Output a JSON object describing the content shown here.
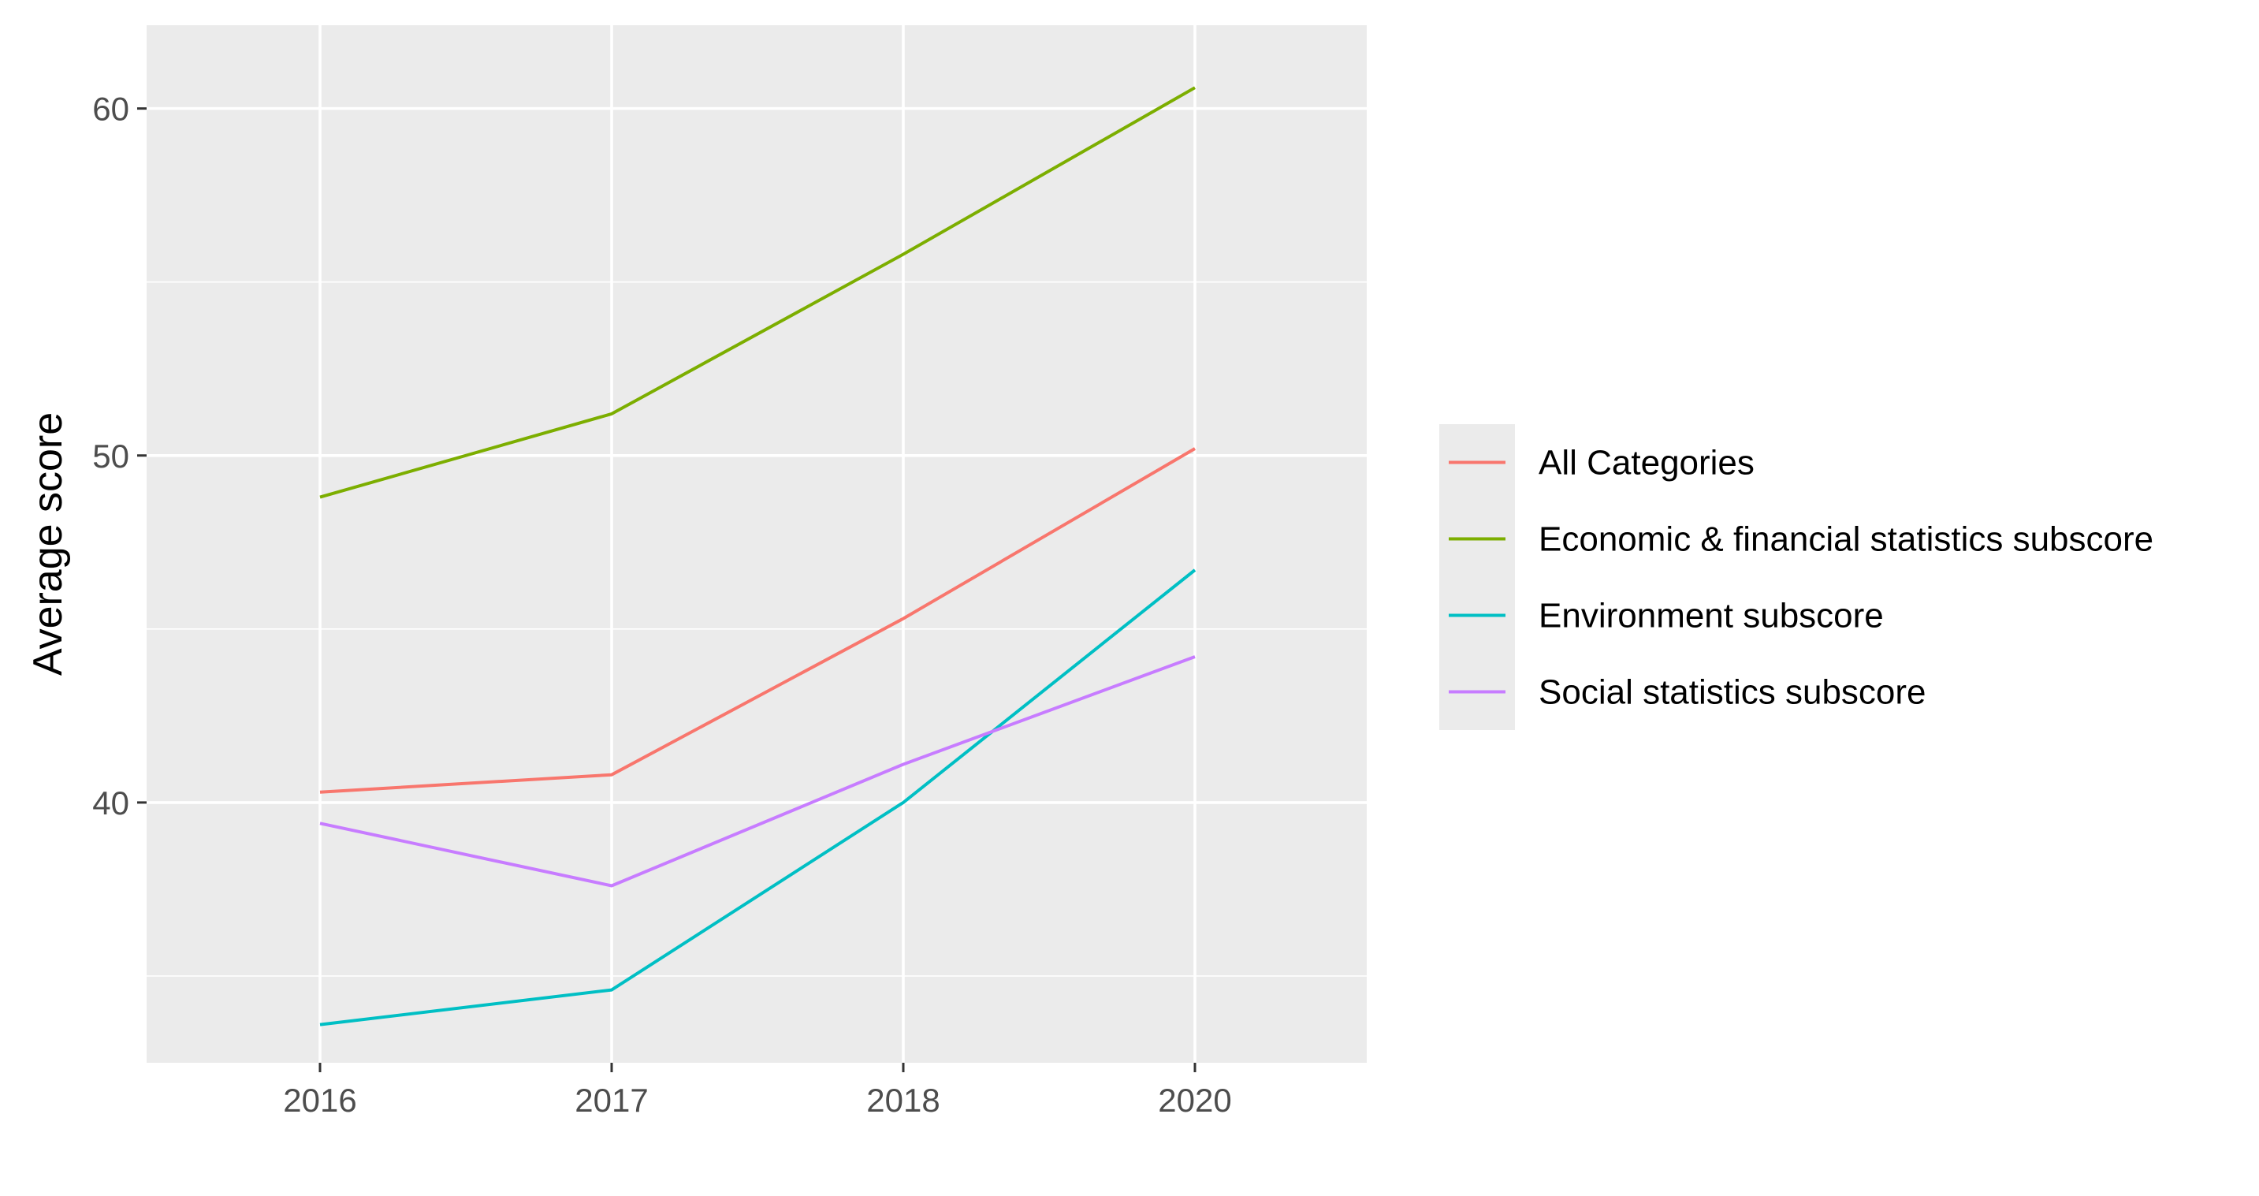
{
  "chart_data": {
    "type": "line",
    "title": "",
    "xlabel": "",
    "ylabel": "Average score",
    "x": [
      "2016",
      "2017",
      "2018",
      "2020"
    ],
    "ylim": [
      32.5,
      62.4
    ],
    "yticks": [
      40,
      50,
      60
    ],
    "grid": true,
    "legend_position": "right",
    "series": [
      {
        "name": "All Categories",
        "color": "#F8766D",
        "values": [
          40.3,
          40.8,
          45.3,
          50.2
        ]
      },
      {
        "name": "Economic & financial statistics subscore",
        "color": "#7CAE00",
        "values": [
          48.8,
          51.2,
          55.8,
          60.6
        ]
      },
      {
        "name": "Environment subscore",
        "color": "#00BFC4",
        "values": [
          33.6,
          34.6,
          40.0,
          46.7
        ]
      },
      {
        "name": "Social statistics subscore",
        "color": "#C77CFF",
        "values": [
          39.4,
          37.6,
          41.1,
          44.2
        ]
      }
    ]
  }
}
